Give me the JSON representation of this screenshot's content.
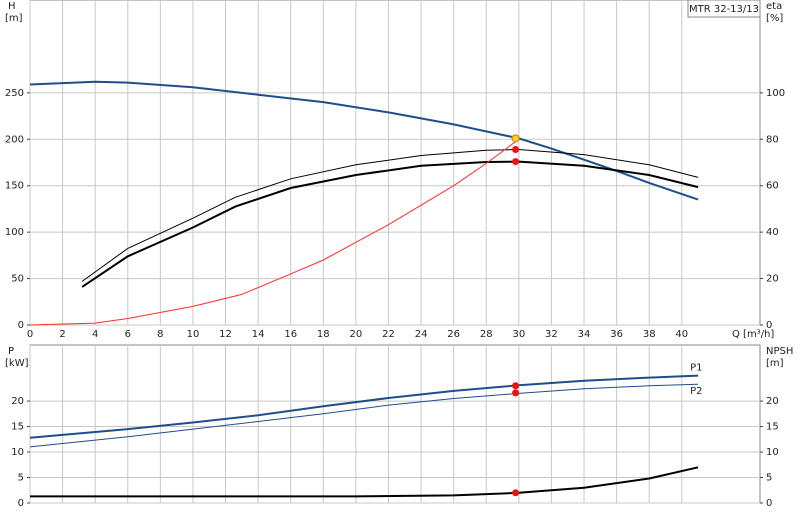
{
  "chart_data": [
    {
      "type": "line",
      "title": "MTR 32-13/13",
      "ylabel": "H",
      "yunit": "[m]",
      "y2label": "eta",
      "y2unit": "[%]",
      "xlabel": "Q [m³/h]",
      "xlim": [
        0,
        44.8
      ],
      "xticks": [
        0,
        2,
        4,
        6,
        8,
        10,
        12,
        14,
        16,
        18,
        20,
        22,
        24,
        26,
        28,
        30,
        32,
        34,
        36,
        38,
        40
      ],
      "ylim": [
        0,
        350
      ],
      "yticks": [
        0,
        50,
        100,
        150,
        200,
        250
      ],
      "y2lim": [
        0,
        140
      ],
      "y2ticks": [
        0,
        20,
        40,
        60,
        80,
        100
      ],
      "grid": true,
      "series": [
        {
          "color": "#1f4e8c",
          "width": 2,
          "x": [
            0,
            4,
            6,
            10,
            14,
            18,
            22,
            26,
            30,
            32,
            34,
            36,
            38,
            41
          ],
          "values": [
            259,
            262,
            261,
            256,
            248,
            240,
            229,
            216,
            201,
            190,
            178,
            166,
            153,
            135
          ]
        },
        {
          "color": "#000000",
          "width": 1,
          "axis": "y2",
          "x": [
            3.2,
            6,
            10,
            12.6,
            16,
            20,
            24,
            28,
            30,
            34,
            38,
            41
          ],
          "values": [
            18.8,
            33,
            46,
            55,
            63,
            69,
            73,
            75.3,
            75.6,
            73.4,
            69,
            63.6
          ]
        },
        {
          "color": "#000000",
          "width": 2,
          "axis": "y2",
          "x": [
            3.2,
            6,
            10,
            12.6,
            16,
            20,
            24,
            28,
            30,
            34,
            38,
            41
          ],
          "values": [
            16.4,
            29.6,
            42,
            51,
            59,
            64.6,
            68.6,
            70.2,
            70.4,
            68.6,
            64.6,
            59.4
          ]
        },
        {
          "color": "#ff2a2a",
          "width": 1,
          "x": [
            0,
            4,
            6,
            10,
            13,
            16,
            18,
            22,
            26,
            28,
            30
          ],
          "values": [
            0,
            2,
            7,
            20,
            33,
            55,
            70,
            108,
            150,
            174,
            200
          ]
        }
      ],
      "points": [
        {
          "x": 29.8,
          "y": 201,
          "color": "#ffd21f"
        },
        {
          "x": 29.8,
          "y": 75.6,
          "axis": "y2",
          "color": "#ee1111"
        },
        {
          "x": 29.8,
          "y": 70.4,
          "axis": "y2",
          "color": "#ee1111"
        }
      ]
    },
    {
      "type": "line",
      "ylabel": "P",
      "yunit": "[kW]",
      "y2label": "NPSH",
      "y2unit": "[m]",
      "xlim": [
        0,
        44.8
      ],
      "ylim": [
        0,
        31
      ],
      "yticks": [
        0,
        5,
        10,
        15,
        20
      ],
      "y2lim": [
        0,
        31
      ],
      "y2ticks": [
        0,
        5,
        10,
        15,
        20
      ],
      "grid": true,
      "series": [
        {
          "name": "P1",
          "color": "#1f4e8c",
          "width": 2,
          "x": [
            0,
            6,
            10,
            14,
            18,
            22,
            26,
            30,
            34,
            38,
            41
          ],
          "values": [
            12.8,
            14.5,
            15.8,
            17.2,
            19,
            20.6,
            22,
            23.1,
            24,
            24.6,
            25
          ]
        },
        {
          "name": "P2",
          "color": "#1f4e8c",
          "width": 1,
          "x": [
            0,
            6,
            10,
            14,
            18,
            22,
            26,
            30,
            34,
            38,
            41
          ],
          "values": [
            11,
            13,
            14.5,
            16,
            17.5,
            19.2,
            20.5,
            21.5,
            22.4,
            23,
            23.3
          ]
        },
        {
          "color": "#000000",
          "width": 2,
          "axis": "y2",
          "x": [
            0,
            10,
            20,
            26,
            30,
            34,
            38,
            41
          ],
          "values": [
            1.3,
            1.3,
            1.3,
            1.5,
            2.0,
            3.0,
            4.8,
            7.0
          ]
        }
      ],
      "points": [
        {
          "x": 29.8,
          "y": 23,
          "color": "#ee1111"
        },
        {
          "x": 29.8,
          "y": 21.6,
          "color": "#ee1111"
        },
        {
          "x": 29.8,
          "y": 2,
          "axis": "y2",
          "color": "#ee1111"
        }
      ]
    }
  ]
}
